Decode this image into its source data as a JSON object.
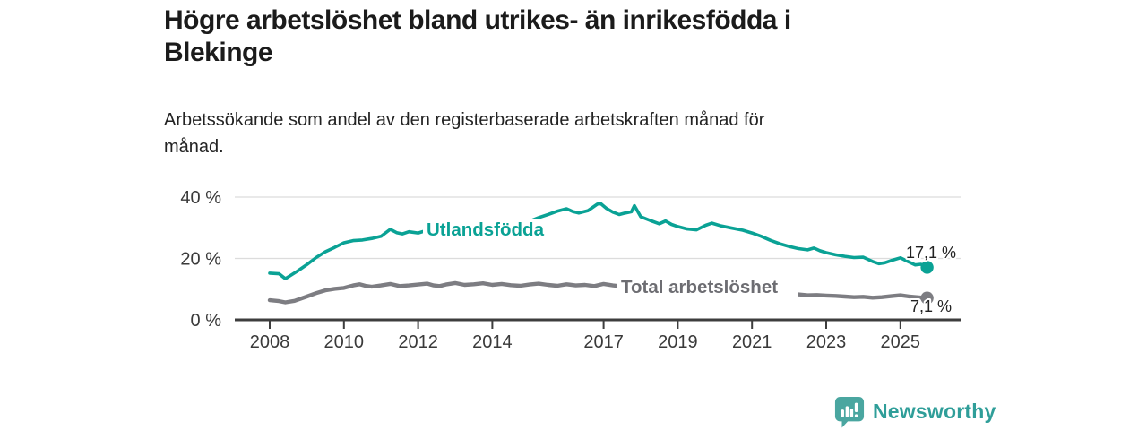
{
  "header": {
    "title_lines": [
      "Högre arbetslöshet bland utrikes- än inrikesfödda i",
      "Blekinge"
    ],
    "subtitle_lines": [
      "Arbetssökande som andel av den registerbaserade arbetskraften månad för",
      "månad."
    ]
  },
  "chart_data": {
    "type": "line",
    "title": "Högre arbetslöshet bland utrikes- än inrikesfödda i Blekinge",
    "subtitle": "Arbetssökande som andel av den registerbaserade arbetskraften månad för månad.",
    "unit": "%",
    "grid": true,
    "gridline_color": "#dcdcdc",
    "axis_color": "#3d3d3d",
    "xlim": [
      2008,
      2025.75
    ],
    "ylim": [
      0,
      43
    ],
    "x_tick_labels": [
      "2008",
      "2010",
      "2012",
      "2014",
      "2017",
      "2019",
      "2021",
      "2023",
      "2025"
    ],
    "x_tick_years": [
      2008,
      2010,
      2012,
      2014,
      2017,
      2019,
      2021,
      2023,
      2025
    ],
    "y_ticks": [
      {
        "value": 0,
        "label": "0 %"
      },
      {
        "value": 20,
        "label": "20 %"
      },
      {
        "value": 40,
        "label": "40 %"
      }
    ],
    "series": [
      {
        "name": "Utlandsfödda",
        "color": "#0aa295",
        "label_color": "#0aa295",
        "end_label": "17,1 %",
        "end_value": 17.1,
        "points": [
          [
            2008.0,
            15.2
          ],
          [
            2008.25,
            15.0
          ],
          [
            2008.42,
            13.4
          ],
          [
            2008.58,
            14.6
          ],
          [
            2008.75,
            15.9
          ],
          [
            2009.0,
            18.0
          ],
          [
            2009.25,
            20.3
          ],
          [
            2009.5,
            22.2
          ],
          [
            2009.75,
            23.6
          ],
          [
            2010.0,
            25.1
          ],
          [
            2010.25,
            25.8
          ],
          [
            2010.5,
            26.0
          ],
          [
            2010.75,
            26.5
          ],
          [
            2011.0,
            27.2
          ],
          [
            2011.25,
            29.5
          ],
          [
            2011.42,
            28.4
          ],
          [
            2011.58,
            28.0
          ],
          [
            2011.75,
            28.7
          ],
          [
            2012.0,
            28.3
          ],
          [
            2012.25,
            29.2
          ],
          [
            2012.5,
            28.4
          ],
          [
            2012.75,
            28.8
          ],
          [
            2013.0,
            28.2
          ],
          [
            2013.25,
            28.9
          ],
          [
            2013.5,
            28.5
          ],
          [
            2013.75,
            29.2
          ],
          [
            2014.0,
            29.0
          ],
          [
            2014.25,
            29.6
          ],
          [
            2014.5,
            30.2
          ],
          [
            2014.75,
            31.0
          ],
          [
            2015.0,
            32.1
          ],
          [
            2015.25,
            33.3
          ],
          [
            2015.5,
            34.3
          ],
          [
            2015.75,
            35.4
          ],
          [
            2016.0,
            36.2
          ],
          [
            2016.17,
            35.3
          ],
          [
            2016.33,
            34.8
          ],
          [
            2016.58,
            35.6
          ],
          [
            2016.83,
            37.7
          ],
          [
            2016.92,
            37.9
          ],
          [
            2017.08,
            36.3
          ],
          [
            2017.25,
            35.1
          ],
          [
            2017.42,
            34.3
          ],
          [
            2017.58,
            34.8
          ],
          [
            2017.75,
            35.2
          ],
          [
            2017.83,
            37.2
          ],
          [
            2018.0,
            33.6
          ],
          [
            2018.25,
            32.4
          ],
          [
            2018.5,
            31.3
          ],
          [
            2018.67,
            32.2
          ],
          [
            2018.83,
            31.1
          ],
          [
            2019.0,
            30.4
          ],
          [
            2019.25,
            29.6
          ],
          [
            2019.5,
            29.3
          ],
          [
            2019.75,
            30.8
          ],
          [
            2019.92,
            31.5
          ],
          [
            2020.17,
            30.6
          ],
          [
            2020.42,
            30.0
          ],
          [
            2020.75,
            29.2
          ],
          [
            2021.0,
            28.3
          ],
          [
            2021.25,
            27.2
          ],
          [
            2021.5,
            25.9
          ],
          [
            2021.75,
            24.8
          ],
          [
            2022.0,
            23.9
          ],
          [
            2022.25,
            23.2
          ],
          [
            2022.5,
            22.8
          ],
          [
            2022.67,
            23.4
          ],
          [
            2022.83,
            22.5
          ],
          [
            2023.0,
            21.9
          ],
          [
            2023.25,
            21.2
          ],
          [
            2023.5,
            20.7
          ],
          [
            2023.75,
            20.3
          ],
          [
            2024.0,
            20.4
          ],
          [
            2024.25,
            19.0
          ],
          [
            2024.42,
            18.3
          ],
          [
            2024.58,
            18.6
          ],
          [
            2024.75,
            19.3
          ],
          [
            2025.0,
            20.2
          ],
          [
            2025.2,
            19.0
          ],
          [
            2025.4,
            17.9
          ],
          [
            2025.55,
            18.1
          ],
          [
            2025.72,
            17.1
          ]
        ]
      },
      {
        "name": "Total arbetslöshet",
        "color": "#7d7d82",
        "label_color": "#6d6d72",
        "end_label": "7,1 %",
        "end_value": 7.1,
        "points": [
          [
            2008.0,
            6.4
          ],
          [
            2008.25,
            6.1
          ],
          [
            2008.42,
            5.7
          ],
          [
            2008.67,
            6.2
          ],
          [
            2009.0,
            7.6
          ],
          [
            2009.25,
            8.7
          ],
          [
            2009.5,
            9.6
          ],
          [
            2009.75,
            10.1
          ],
          [
            2010.0,
            10.4
          ],
          [
            2010.25,
            11.2
          ],
          [
            2010.42,
            11.6
          ],
          [
            2010.58,
            11.1
          ],
          [
            2010.75,
            10.8
          ],
          [
            2011.0,
            11.2
          ],
          [
            2011.25,
            11.7
          ],
          [
            2011.5,
            11.0
          ],
          [
            2011.75,
            11.2
          ],
          [
            2012.0,
            11.5
          ],
          [
            2012.25,
            11.8
          ],
          [
            2012.42,
            11.2
          ],
          [
            2012.58,
            11.0
          ],
          [
            2012.75,
            11.5
          ],
          [
            2013.0,
            12.0
          ],
          [
            2013.25,
            11.4
          ],
          [
            2013.5,
            11.6
          ],
          [
            2013.75,
            11.9
          ],
          [
            2014.0,
            11.4
          ],
          [
            2014.25,
            11.7
          ],
          [
            2014.5,
            11.3
          ],
          [
            2014.75,
            11.1
          ],
          [
            2015.0,
            11.5
          ],
          [
            2015.25,
            11.8
          ],
          [
            2015.5,
            11.4
          ],
          [
            2015.75,
            11.1
          ],
          [
            2016.0,
            11.6
          ],
          [
            2016.25,
            11.2
          ],
          [
            2016.5,
            11.4
          ],
          [
            2016.75,
            11.0
          ],
          [
            2017.0,
            11.7
          ],
          [
            2017.25,
            11.2
          ],
          [
            2017.5,
            10.9
          ],
          [
            2017.75,
            11.1
          ],
          [
            2018.0,
            11.3
          ],
          [
            2018.25,
            10.8
          ],
          [
            2018.5,
            10.5
          ],
          [
            2018.75,
            10.8
          ],
          [
            2019.0,
            10.4
          ],
          [
            2019.25,
            10.0
          ],
          [
            2019.5,
            9.7
          ],
          [
            2019.75,
            9.9
          ],
          [
            2020.0,
            9.8
          ],
          [
            2020.25,
            10.3
          ],
          [
            2020.5,
            10.1
          ],
          [
            2020.75,
            9.7
          ],
          [
            2021.0,
            9.3
          ],
          [
            2021.25,
            8.9
          ],
          [
            2021.5,
            8.6
          ],
          [
            2021.75,
            8.4
          ],
          [
            2022.0,
            8.2
          ],
          [
            2022.25,
            8.3
          ],
          [
            2022.5,
            8.0
          ],
          [
            2022.75,
            8.1
          ],
          [
            2023.0,
            7.9
          ],
          [
            2023.25,
            7.8
          ],
          [
            2023.5,
            7.6
          ],
          [
            2023.75,
            7.4
          ],
          [
            2024.0,
            7.5
          ],
          [
            2024.25,
            7.2
          ],
          [
            2024.5,
            7.4
          ],
          [
            2024.75,
            7.7
          ],
          [
            2025.0,
            8.0
          ],
          [
            2025.25,
            7.6
          ],
          [
            2025.5,
            7.3
          ],
          [
            2025.72,
            7.1
          ]
        ]
      }
    ],
    "legend_position": "inline-labels"
  },
  "branding": {
    "logo_text": "Newsworthy",
    "logo_color": "#2f9e99",
    "icon": "bar-chart-speech-bubble",
    "icon_color": "#4aa6a0"
  }
}
